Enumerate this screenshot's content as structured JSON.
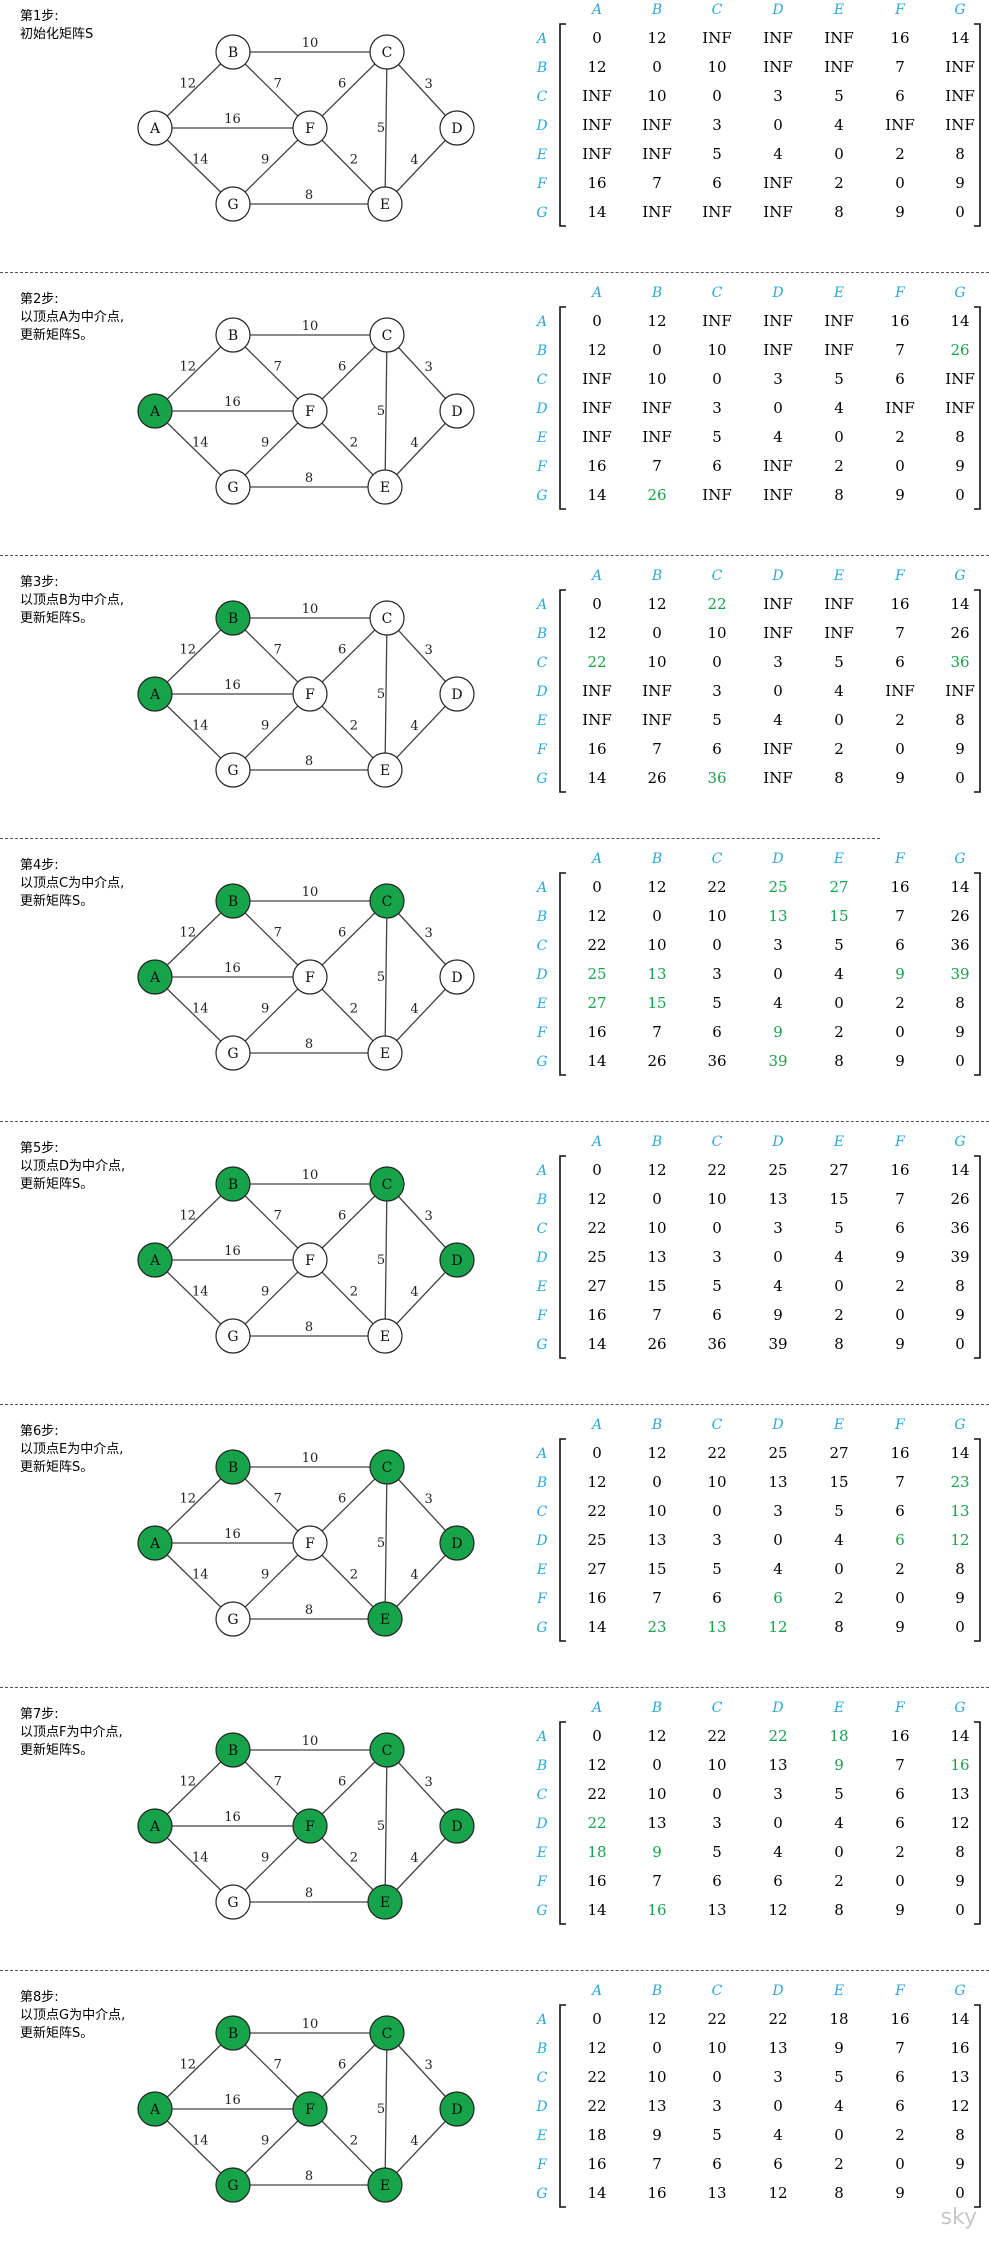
{
  "nodes": [
    "A",
    "B",
    "C",
    "D",
    "E",
    "F",
    "G"
  ],
  "edges": [
    {
      "a": "A",
      "b": "B",
      "w": "12"
    },
    {
      "a": "A",
      "b": "F",
      "w": "16"
    },
    {
      "a": "A",
      "b": "G",
      "w": "14"
    },
    {
      "a": "B",
      "b": "C",
      "w": "10"
    },
    {
      "a": "B",
      "b": "F",
      "w": "7"
    },
    {
      "a": "C",
      "b": "F",
      "w": "6"
    },
    {
      "a": "C",
      "b": "E",
      "w": "5"
    },
    {
      "a": "C",
      "b": "D",
      "w": "3"
    },
    {
      "a": "F",
      "b": "G",
      "w": "9"
    },
    {
      "a": "F",
      "b": "E",
      "w": "2"
    },
    {
      "a": "G",
      "b": "E",
      "w": "8"
    },
    {
      "a": "D",
      "b": "E",
      "w": "4"
    }
  ],
  "colors": {
    "visited": "#16a34a",
    "updated": "#16a34a",
    "header": "#2ba8d8",
    "text": "#000000",
    "edge": "#444444"
  },
  "steps": [
    {
      "caption": [
        "第1步:",
        "初始化矩阵S"
      ],
      "visited": [],
      "matrix": [
        [
          "0",
          "12",
          "INF",
          "INF",
          "INF",
          "16",
          "14"
        ],
        [
          "12",
          "0",
          "10",
          "INF",
          "INF",
          "7",
          "INF"
        ],
        [
          "INF",
          "10",
          "0",
          "3",
          "5",
          "6",
          "INF"
        ],
        [
          "INF",
          "INF",
          "3",
          "0",
          "4",
          "INF",
          "INF"
        ],
        [
          "INF",
          "INF",
          "5",
          "4",
          "0",
          "2",
          "8"
        ],
        [
          "16",
          "7",
          "6",
          "INF",
          "2",
          "0",
          "9"
        ],
        [
          "14",
          "INF",
          "INF",
          "INF",
          "8",
          "9",
          "0"
        ]
      ],
      "updated": []
    },
    {
      "caption": [
        "第2步:",
        "以顶点A为中介点,",
        "更新矩阵S。"
      ],
      "visited": [
        "A"
      ],
      "matrix": [
        [
          "0",
          "12",
          "INF",
          "INF",
          "INF",
          "16",
          "14"
        ],
        [
          "12",
          "0",
          "10",
          "INF",
          "INF",
          "7",
          "26"
        ],
        [
          "INF",
          "10",
          "0",
          "3",
          "5",
          "6",
          "INF"
        ],
        [
          "INF",
          "INF",
          "3",
          "0",
          "4",
          "INF",
          "INF"
        ],
        [
          "INF",
          "INF",
          "5",
          "4",
          "0",
          "2",
          "8"
        ],
        [
          "16",
          "7",
          "6",
          "INF",
          "2",
          "0",
          "9"
        ],
        [
          "14",
          "26",
          "INF",
          "INF",
          "8",
          "9",
          "0"
        ]
      ],
      "updated": [
        "1,6",
        "6,1"
      ]
    },
    {
      "caption": [
        "第3步:",
        "以顶点B为中介点,",
        "更新矩阵S。"
      ],
      "visited": [
        "A",
        "B"
      ],
      "matrix": [
        [
          "0",
          "12",
          "22",
          "INF",
          "INF",
          "16",
          "14"
        ],
        [
          "12",
          "0",
          "10",
          "INF",
          "INF",
          "7",
          "26"
        ],
        [
          "22",
          "10",
          "0",
          "3",
          "5",
          "6",
          "36"
        ],
        [
          "INF",
          "INF",
          "3",
          "0",
          "4",
          "INF",
          "INF"
        ],
        [
          "INF",
          "INF",
          "5",
          "4",
          "0",
          "2",
          "8"
        ],
        [
          "16",
          "7",
          "6",
          "INF",
          "2",
          "0",
          "9"
        ],
        [
          "14",
          "26",
          "36",
          "INF",
          "8",
          "9",
          "0"
        ]
      ],
      "updated": [
        "0,2",
        "2,0",
        "2,6",
        "6,2"
      ]
    },
    {
      "caption": [
        "第4步:",
        "以顶点C为中介点,",
        "更新矩阵S。"
      ],
      "visited": [
        "A",
        "B",
        "C"
      ],
      "matrix": [
        [
          "0",
          "12",
          "22",
          "25",
          "27",
          "16",
          "14"
        ],
        [
          "12",
          "0",
          "10",
          "13",
          "15",
          "7",
          "26"
        ],
        [
          "22",
          "10",
          "0",
          "3",
          "5",
          "6",
          "36"
        ],
        [
          "25",
          "13",
          "3",
          "0",
          "4",
          "9",
          "39"
        ],
        [
          "27",
          "15",
          "5",
          "4",
          "0",
          "2",
          "8"
        ],
        [
          "16",
          "7",
          "6",
          "9",
          "2",
          "0",
          "9"
        ],
        [
          "14",
          "26",
          "36",
          "39",
          "8",
          "9",
          "0"
        ]
      ],
      "updated": [
        "0,3",
        "0,4",
        "1,3",
        "1,4",
        "3,0",
        "3,1",
        "3,5",
        "3,6",
        "4,0",
        "4,1",
        "5,3",
        "6,3"
      ]
    },
    {
      "caption": [
        "第5步:",
        "以顶点D为中介点,",
        "更新矩阵S。"
      ],
      "visited": [
        "A",
        "B",
        "C",
        "D"
      ],
      "matrix": [
        [
          "0",
          "12",
          "22",
          "25",
          "27",
          "16",
          "14"
        ],
        [
          "12",
          "0",
          "10",
          "13",
          "15",
          "7",
          "26"
        ],
        [
          "22",
          "10",
          "0",
          "3",
          "5",
          "6",
          "36"
        ],
        [
          "25",
          "13",
          "3",
          "0",
          "4",
          "9",
          "39"
        ],
        [
          "27",
          "15",
          "5",
          "4",
          "0",
          "2",
          "8"
        ],
        [
          "16",
          "7",
          "6",
          "9",
          "2",
          "0",
          "9"
        ],
        [
          "14",
          "26",
          "36",
          "39",
          "8",
          "9",
          "0"
        ]
      ],
      "updated": []
    },
    {
      "caption": [
        "第6步:",
        "以顶点E为中介点,",
        "更新矩阵S。"
      ],
      "visited": [
        "A",
        "B",
        "C",
        "D",
        "E"
      ],
      "matrix": [
        [
          "0",
          "12",
          "22",
          "25",
          "27",
          "16",
          "14"
        ],
        [
          "12",
          "0",
          "10",
          "13",
          "15",
          "7",
          "23"
        ],
        [
          "22",
          "10",
          "0",
          "3",
          "5",
          "6",
          "13"
        ],
        [
          "25",
          "13",
          "3",
          "0",
          "4",
          "6",
          "12"
        ],
        [
          "27",
          "15",
          "5",
          "4",
          "0",
          "2",
          "8"
        ],
        [
          "16",
          "7",
          "6",
          "6",
          "2",
          "0",
          "9"
        ],
        [
          "14",
          "23",
          "13",
          "12",
          "8",
          "9",
          "0"
        ]
      ],
      "updated": [
        "1,6",
        "2,6",
        "3,5",
        "3,6",
        "5,3",
        "6,1",
        "6,2",
        "6,3"
      ]
    },
    {
      "caption": [
        "第7步:",
        "以顶点F为中介点,",
        "更新矩阵S。"
      ],
      "visited": [
        "A",
        "B",
        "C",
        "D",
        "E",
        "F"
      ],
      "matrix": [
        [
          "0",
          "12",
          "22",
          "22",
          "18",
          "16",
          "14"
        ],
        [
          "12",
          "0",
          "10",
          "13",
          "9",
          "7",
          "16"
        ],
        [
          "22",
          "10",
          "0",
          "3",
          "5",
          "6",
          "13"
        ],
        [
          "22",
          "13",
          "3",
          "0",
          "4",
          "6",
          "12"
        ],
        [
          "18",
          "9",
          "5",
          "4",
          "0",
          "2",
          "8"
        ],
        [
          "16",
          "7",
          "6",
          "6",
          "2",
          "0",
          "9"
        ],
        [
          "14",
          "16",
          "13",
          "12",
          "8",
          "9",
          "0"
        ]
      ],
      "updated": [
        "0,3",
        "0,4",
        "1,4",
        "1,6",
        "3,0",
        "4,0",
        "4,1",
        "6,1"
      ]
    },
    {
      "caption": [
        "第8步:",
        "以顶点G为中介点,",
        "更新矩阵S。"
      ],
      "visited": [
        "A",
        "B",
        "C",
        "D",
        "E",
        "F",
        "G"
      ],
      "matrix": [
        [
          "0",
          "12",
          "22",
          "22",
          "18",
          "16",
          "14"
        ],
        [
          "12",
          "0",
          "10",
          "13",
          "9",
          "7",
          "16"
        ],
        [
          "22",
          "10",
          "0",
          "3",
          "5",
          "6",
          "13"
        ],
        [
          "22",
          "13",
          "3",
          "0",
          "4",
          "6",
          "12"
        ],
        [
          "18",
          "9",
          "5",
          "4",
          "0",
          "2",
          "8"
        ],
        [
          "16",
          "7",
          "6",
          "6",
          "2",
          "0",
          "9"
        ],
        [
          "14",
          "16",
          "13",
          "12",
          "8",
          "9",
          "0"
        ]
      ],
      "updated": []
    }
  ],
  "watermark": "sky"
}
